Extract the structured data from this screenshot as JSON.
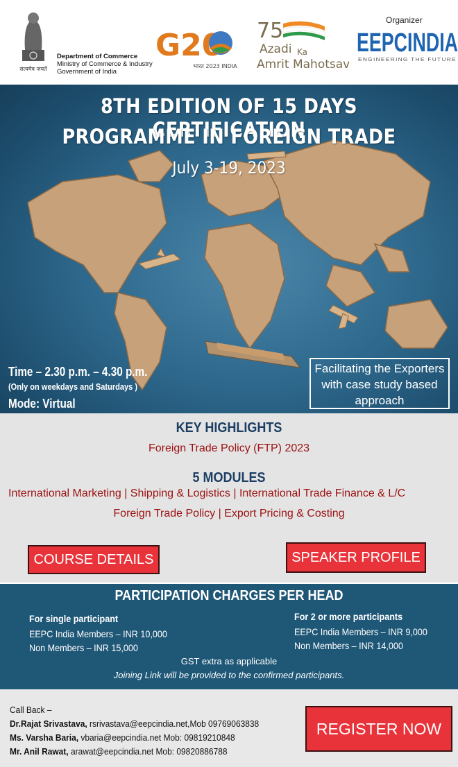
{
  "header": {
    "emblem_motto": "सत्यमेव जयते",
    "dept_line1": "Department of Commerce",
    "dept_line2": "Ministry of Commerce & Industry",
    "dept_line3": "Government of India",
    "g20_text": "G20",
    "g20_sub": "भारत 2023 INDIA",
    "azadi_75": "75",
    "azadi_line1": "Azadi",
    "azadi_ka": "Ka",
    "azadi_line2": "Amrit Mahotsav",
    "organizer_label": "Organizer",
    "eepc_logo": "EEPCINDIA",
    "eepc_tagline": "ENGINEERING THE FUTURE"
  },
  "hero": {
    "title_line1": "8TH EDITION OF 15 DAYS CERTIFICATION",
    "title_line2": "PROGRAMME IN FOREIGN TRADE",
    "dates": "July 3-19, 2023",
    "time": "Time – 2.30 p.m. – 4.30 p.m.",
    "days_note": "(Only on weekdays and Saturdays )",
    "mode": "Mode: Virtual",
    "facilitating_line1": "Facilitating the Exporters",
    "facilitating_line2": "with case study based",
    "facilitating_line3": "approach"
  },
  "highlights": {
    "heading": "KEY HIGHLIGHTS",
    "ftp": "Foreign Trade Policy (FTP)  2023",
    "modules_heading": "5 MODULES",
    "modules_line1": "International Marketing | Shipping & Logistics | International Trade Finance & L/C",
    "modules_line2": "Foreign Trade Policy |  Export Pricing & Costing",
    "course_button": "COURSE DETAILS",
    "speaker_button": "SPEAKER PROFILE"
  },
  "charges": {
    "heading": "PARTICIPATION CHARGES PER HEAD",
    "single_label": "For single participant",
    "single_members": "EEPC India Members – INR 10,000",
    "single_non": "Non Members – INR 15,000",
    "multi_label": "For 2 or more participants",
    "multi_members": "EEPC India Members – INR 9,000",
    "multi_non": "Non Members – INR 14,000",
    "gst": "GST extra as applicable",
    "joining": "Joining Link will be provided to the confirmed participants."
  },
  "footer": {
    "callback": "Call Back –",
    "c1_name": "Dr.Rajat Srivastava,",
    "c1_info": " rsrivastava@eepcindia.net,Mob 09769063838",
    "c2_name": "Ms. Varsha Baria,",
    "c2_info": " vbaria@eepcindia.net Mob: 09819210848",
    "c3_name": "Mr. Anil Rawat,",
    "c3_info": " arawat@eepcindia.net Mob: 09820886788",
    "register_button": "REGISTER NOW"
  },
  "colors": {
    "hero_bg": "#2f6a8e",
    "accent_red": "#e9333a",
    "text_red": "#9b1111",
    "navy": "#1c3e63",
    "charges_bg": "#1f5777"
  }
}
